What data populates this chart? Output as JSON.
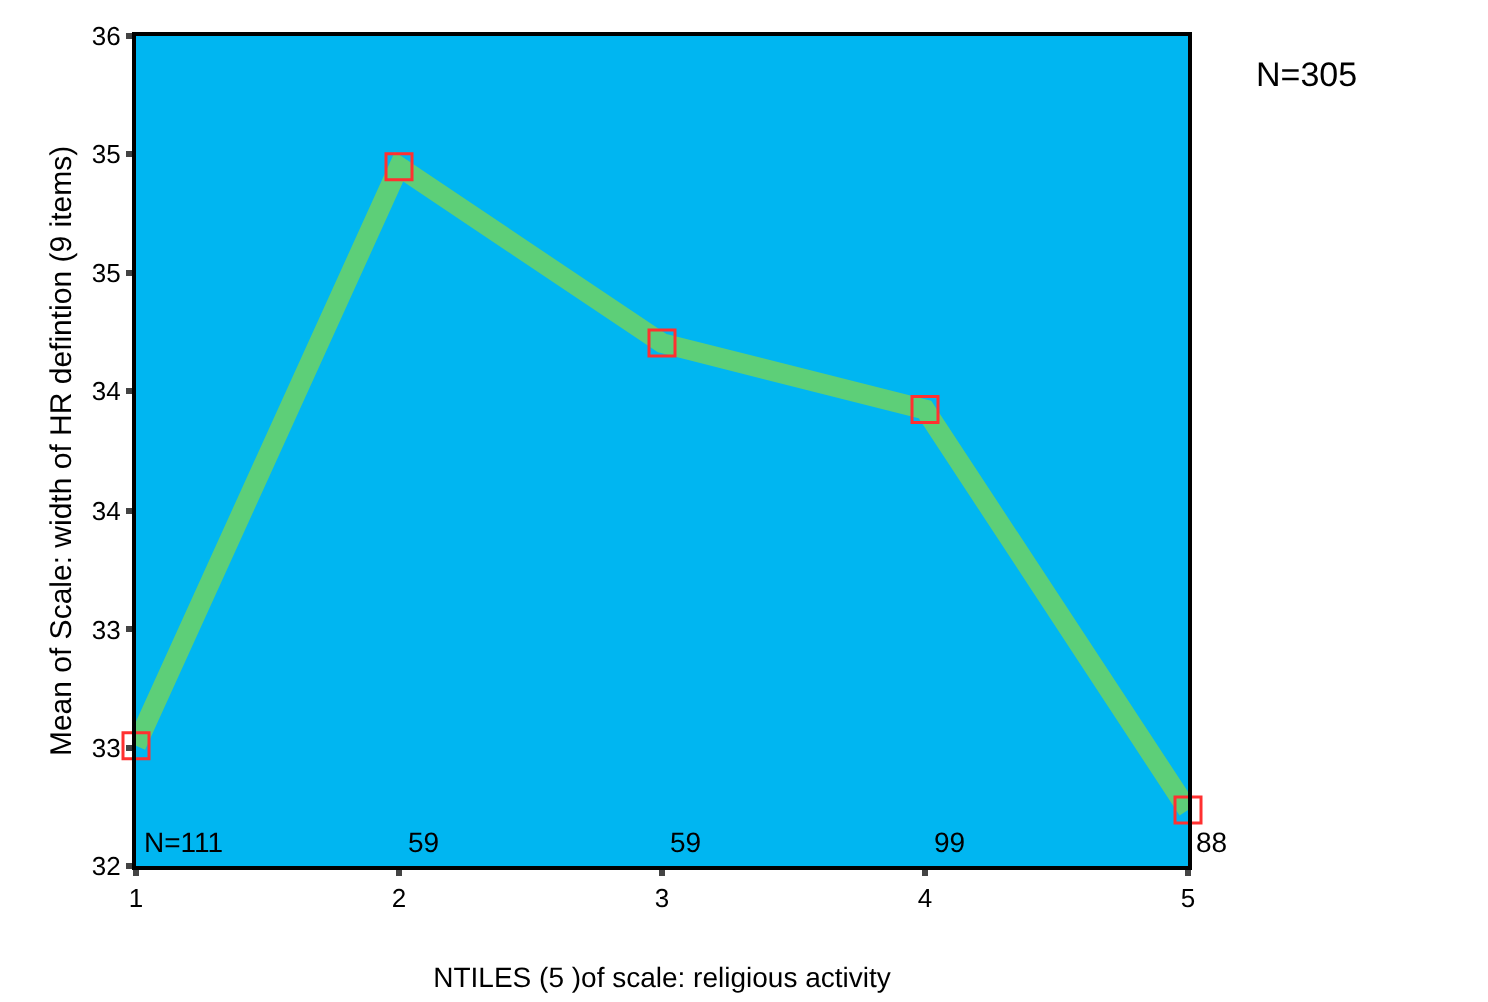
{
  "chart_data": {
    "type": "line",
    "xlabel": "NTILES (5 )of scale: religious activity",
    "ylabel": "Mean of Scale: width of HR defintion (9 items)",
    "x": [
      1,
      2,
      3,
      4,
      5
    ],
    "series": [
      {
        "color": "#5dcf78",
        "values": [
          32.58,
          35.37,
          34.52,
          34.2,
          32.27
        ]
      }
    ],
    "xlim": [
      1,
      5
    ],
    "xticks": [
      1,
      2,
      3,
      4,
      5
    ],
    "ylim": [
      32,
      36
    ],
    "yticks": [
      32,
      {
        "value": 32.57,
        "label": "33"
      },
      {
        "value": 33.14,
        "label": "33"
      },
      {
        "value": 33.71,
        "label": "34"
      },
      {
        "value": 34.29,
        "label": "34"
      },
      {
        "value": 34.86,
        "label": "35"
      },
      {
        "value": 35.43,
        "label": "35"
      },
      36
    ],
    "marker": "square",
    "line_style": "solid",
    "grid": false,
    "annotations": [
      "N=111",
      "59",
      "59",
      "99",
      "88",
      "N=305"
    ]
  }
}
